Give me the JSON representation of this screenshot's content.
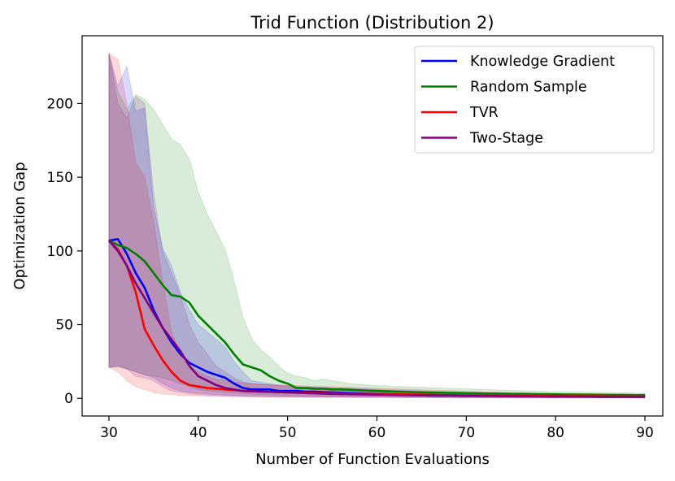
{
  "chart_data": {
    "type": "line",
    "title": "Trid Function (Distribution 2)",
    "xlabel": "Number of Function Evaluations",
    "ylabel": "Optimization Gap",
    "xlim": [
      27,
      92
    ],
    "ylim": [
      -12,
      246
    ],
    "xticks": [
      30,
      40,
      50,
      60,
      70,
      80,
      90
    ],
    "yticks": [
      0,
      50,
      100,
      150,
      200
    ],
    "grid": false,
    "legend_position": "top-right",
    "x": [
      30,
      31,
      32,
      33,
      34,
      35,
      36,
      37,
      38,
      39,
      40,
      41,
      42,
      43,
      44,
      45,
      46,
      47,
      48,
      49,
      50,
      51,
      52,
      53,
      54,
      55,
      56,
      57,
      58,
      59,
      60,
      61,
      62,
      63,
      64,
      65,
      66,
      67,
      68,
      69,
      70,
      71,
      72,
      73,
      74,
      75,
      76,
      77,
      78,
      79,
      80,
      81,
      82,
      83,
      84,
      85,
      86,
      87,
      88,
      89,
      90
    ],
    "series": [
      {
        "name": "Knowledge Gradient",
        "color": "#0000ff",
        "values": [
          107,
          108,
          98,
          85,
          75,
          60,
          48,
          38,
          30,
          24,
          21,
          18,
          16,
          14,
          10,
          7,
          6,
          6,
          6,
          5,
          5,
          5,
          4.5,
          4.5,
          4.2,
          4,
          3.8,
          3.6,
          3.4,
          3.2,
          3,
          2.8,
          2.7,
          2.6,
          2.5,
          2.4,
          2.3,
          2.2,
          2.1,
          2,
          2,
          1.9,
          1.8,
          1.8,
          1.7,
          1.7,
          1.6,
          1.6,
          1.5,
          1.5,
          1.4,
          1.4,
          1.4,
          1.3,
          1.3,
          1.3,
          1.2,
          1.2,
          1.2,
          1.2,
          1.2
        ],
        "lower": [
          21,
          22,
          20,
          18,
          16,
          14,
          10,
          7,
          5,
          4,
          3.5,
          3,
          2.5,
          2.2,
          2,
          1.8,
          1.6,
          1.5,
          1.4,
          1.3,
          1.2,
          1.2,
          1.1,
          1.1,
          1,
          1,
          1,
          0.9,
          0.9,
          0.9,
          0.8,
          0.8,
          0.8,
          0.7,
          0.7,
          0.7,
          0.7,
          0.6,
          0.6,
          0.6,
          0.6,
          0.6,
          0.5,
          0.5,
          0.5,
          0.5,
          0.5,
          0.5,
          0.4,
          0.4,
          0.4,
          0.4,
          0.4,
          0.4,
          0.4,
          0.3,
          0.3,
          0.3,
          0.3,
          0.3,
          0.3
        ],
        "upper": [
          234,
          212,
          225,
          195,
          197,
          130,
          102,
          90,
          72,
          60,
          50,
          45,
          40,
          35,
          25,
          18,
          12,
          11,
          10,
          9,
          8.5,
          8,
          7.8,
          7.6,
          7.4,
          7.2,
          7,
          6.8,
          6.5,
          6.3,
          6,
          5.8,
          5.6,
          5.4,
          5.2,
          5,
          4.8,
          4.6,
          4.4,
          4.2,
          4,
          3.9,
          3.8,
          3.7,
          3.6,
          3.5,
          3.4,
          3.3,
          3.2,
          3.1,
          3,
          3,
          2.9,
          2.9,
          2.8,
          2.8,
          2.7,
          2.7,
          2.6,
          2.6,
          2.5
        ]
      },
      {
        "name": "Random Sample",
        "color": "#008000",
        "values": [
          107,
          104,
          102,
          98,
          93,
          85,
          77,
          70,
          69,
          65,
          56,
          50,
          44,
          38,
          30,
          23,
          21,
          19,
          15,
          12,
          10,
          7,
          7,
          6.5,
          6.5,
          6,
          6,
          5.8,
          5.5,
          5.2,
          5,
          4.8,
          4.6,
          4.4,
          4.2,
          4,
          3.9,
          3.8,
          3.7,
          3.6,
          3.5,
          3.4,
          3.3,
          3.2,
          3.1,
          3,
          3,
          2.9,
          2.8,
          2.8,
          2.7,
          2.6,
          2.6,
          2.5,
          2.5,
          2.4,
          2.4,
          2.3,
          2.3,
          2.2,
          2.2
        ],
        "lower": [
          21,
          21,
          20,
          18,
          16,
          15,
          14,
          12,
          10,
          8,
          6,
          5,
          4.5,
          4,
          3.5,
          3,
          2.8,
          2.6,
          2.4,
          2.2,
          2,
          1.9,
          1.8,
          1.7,
          1.6,
          1.5,
          1.5,
          1.4,
          1.4,
          1.3,
          1.3,
          1.2,
          1.2,
          1.2,
          1.1,
          1.1,
          1.1,
          1,
          1,
          1,
          1,
          0.9,
          0.9,
          0.9,
          0.9,
          0.9,
          0.8,
          0.8,
          0.8,
          0.8,
          0.8,
          0.7,
          0.7,
          0.7,
          0.7,
          0.7,
          0.7,
          0.6,
          0.6,
          0.6,
          0.6
        ],
        "upper": [
          234,
          208,
          196,
          206,
          203,
          196,
          186,
          176,
          172,
          162,
          140,
          125,
          113,
          101,
          80,
          55,
          40,
          33,
          28,
          22,
          17,
          15,
          14,
          12,
          13,
          12,
          11,
          10,
          9.5,
          9,
          8.5,
          8.5,
          8,
          8,
          7.5,
          7.5,
          7.2,
          7,
          6.8,
          6.6,
          6.4,
          6.2,
          6,
          5.8,
          5.6,
          5.4,
          5.2,
          5,
          4.8,
          4.6,
          4.5,
          4.4,
          4.3,
          4.2,
          4.1,
          4,
          3.9,
          3.8,
          3.7,
          3.6,
          3.5
        ]
      },
      {
        "name": "TVR",
        "color": "#ff0000",
        "values": [
          107,
          101,
          90,
          72,
          47,
          36,
          26,
          18,
          12,
          9,
          8,
          7,
          6.5,
          6,
          5.5,
          5,
          4.8,
          4.6,
          4.4,
          4.2,
          4,
          3.9,
          3.8,
          3.7,
          3.6,
          3.5,
          3.4,
          3.3,
          3.2,
          3.1,
          3,
          2.9,
          2.8,
          2.7,
          2.6,
          2.5,
          2.4,
          2.3,
          2.2,
          2.1,
          2,
          2,
          1.9,
          1.9,
          1.8,
          1.8,
          1.7,
          1.7,
          1.6,
          1.6,
          1.5,
          1.5,
          1.5,
          1.4,
          1.4,
          1.4,
          1.3,
          1.3,
          1.3,
          1.2,
          1.2
        ],
        "lower": [
          21,
          18,
          12,
          8,
          6,
          4,
          3,
          2.5,
          2,
          1.8,
          1.6,
          1.5,
          1.4,
          1.3,
          1.2,
          1.1,
          1,
          1,
          0.9,
          0.9,
          0.9,
          0.8,
          0.8,
          0.8,
          0.7,
          0.7,
          0.7,
          0.7,
          0.6,
          0.6,
          0.6,
          0.6,
          0.6,
          0.5,
          0.5,
          0.5,
          0.5,
          0.5,
          0.5,
          0.4,
          0.4,
          0.4,
          0.4,
          0.4,
          0.4,
          0.4,
          0.4,
          0.3,
          0.3,
          0.3,
          0.3,
          0.3,
          0.3,
          0.3,
          0.3,
          0.3,
          0.3,
          0.3,
          0.3,
          0.3,
          0.3
        ],
        "upper": [
          234,
          230,
          200,
          160,
          150,
          120,
          80,
          45,
          30,
          22,
          18,
          15,
          13,
          12,
          11,
          10.5,
          10,
          9.5,
          9.2,
          9,
          8.8,
          8.6,
          8.4,
          8.2,
          8,
          7.8,
          7.6,
          7.4,
          7.2,
          7,
          6.8,
          6.6,
          6.4,
          6.2,
          6,
          5.8,
          5.6,
          5.4,
          5.2,
          5,
          4.8,
          4.6,
          4.4,
          4.2,
          4,
          3.9,
          3.8,
          3.7,
          3.6,
          3.5,
          3.4,
          3.3,
          3.2,
          3.1,
          3,
          3,
          2.9,
          2.9,
          2.8,
          2.8,
          2.7
        ]
      },
      {
        "name": "Two-Stage",
        "color": "#800080",
        "values": [
          107,
          100,
          90,
          78,
          68,
          58,
          48,
          40,
          32,
          22,
          15,
          12,
          9,
          7,
          6,
          5,
          4.8,
          4.6,
          4.4,
          4.2,
          4,
          3.8,
          3.6,
          3.4,
          3.2,
          3,
          2.9,
          2.8,
          2.7,
          2.6,
          2.5,
          2.4,
          2.3,
          2.2,
          2.1,
          2,
          1.9,
          1.8,
          1.8,
          1.7,
          1.6,
          1.6,
          1.5,
          1.5,
          1.4,
          1.4,
          1.3,
          1.3,
          1.3,
          1.2,
          1.2,
          1.2,
          1.1,
          1.1,
          1.1,
          1,
          1,
          1,
          1,
          1,
          1
        ],
        "lower": [
          21,
          22,
          20,
          15,
          14,
          12,
          8,
          5,
          4,
          3,
          2.5,
          2,
          1.8,
          1.6,
          1.4,
          1.3,
          1.2,
          1.1,
          1,
          1,
          0.9,
          0.9,
          0.8,
          0.8,
          0.8,
          0.7,
          0.7,
          0.7,
          0.6,
          0.6,
          0.6,
          0.6,
          0.5,
          0.5,
          0.5,
          0.5,
          0.5,
          0.4,
          0.4,
          0.4,
          0.4,
          0.4,
          0.4,
          0.4,
          0.3,
          0.3,
          0.3,
          0.3,
          0.3,
          0.3,
          0.3,
          0.3,
          0.3,
          0.3,
          0.3,
          0.3,
          0.3,
          0.3,
          0.3,
          0.3,
          0.3
        ],
        "upper": [
          234,
          200,
          190,
          205,
          200,
          140,
          100,
          85,
          70,
          50,
          38,
          30,
          22,
          18,
          14,
          11,
          10,
          9.5,
          9,
          8.5,
          8,
          7.6,
          7.2,
          6.8,
          6.4,
          6,
          5.8,
          5.6,
          5.4,
          5.2,
          5,
          4.8,
          4.6,
          4.4,
          4.2,
          4,
          3.9,
          3.8,
          3.7,
          3.6,
          3.5,
          3.4,
          3.3,
          3.2,
          3.1,
          3,
          2.9,
          2.8,
          2.7,
          2.6,
          2.5,
          2.4,
          2.4,
          2.3,
          2.3,
          2.2,
          2.2,
          2.1,
          2.1,
          2,
          2
        ]
      }
    ]
  }
}
